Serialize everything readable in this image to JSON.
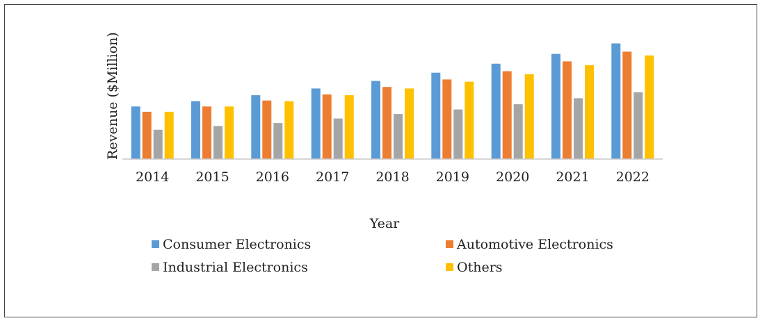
{
  "chart_data": {
    "type": "bar",
    "title": "",
    "xlabel": "Year",
    "ylabel": "Revenue ($Million)",
    "categories": [
      "2014",
      "2015",
      "2016",
      "2017",
      "2018",
      "2019",
      "2020",
      "2021",
      "2022"
    ],
    "ylim": [
      0,
      160
    ],
    "grid": false,
    "legend_position": "bottom",
    "series": [
      {
        "name": "Consumer Electronics",
        "color": "#5B9BD5",
        "values": [
          70,
          77,
          85,
          94,
          104,
          115,
          127,
          140,
          154
        ]
      },
      {
        "name": "Automotive Electronics",
        "color": "#ED7D31",
        "values": [
          63,
          70,
          78,
          86,
          96,
          106,
          117,
          130,
          143
        ]
      },
      {
        "name": "Industrial Electronics",
        "color": "#A5A5A5",
        "values": [
          39,
          44,
          48,
          54,
          60,
          66,
          73,
          81,
          89
        ]
      },
      {
        "name": "Others",
        "color": "#FFC000",
        "values": [
          63,
          70,
          77,
          85,
          94,
          103,
          113,
          125,
          138
        ]
      }
    ]
  }
}
